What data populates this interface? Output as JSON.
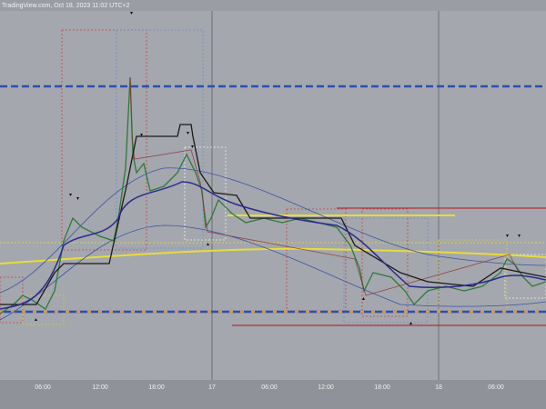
{
  "header": {
    "source": "TradingView.com, Oct 18, 2023 11:02 UTC+2"
  },
  "x_axis": {
    "labels": [
      "06:00",
      "12:00",
      "18:00",
      "17",
      "06:00",
      "12:00",
      "18:00",
      "18",
      "06:00"
    ]
  }
}
